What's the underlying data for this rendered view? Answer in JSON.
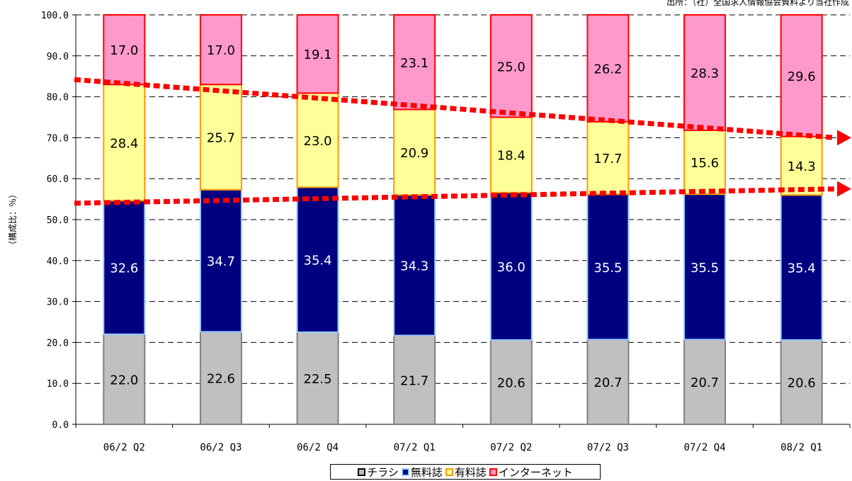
{
  "source_note": "出所：（社）全国求人情報協会資料より当社作成",
  "chart_data": {
    "type": "bar",
    "stacked": true,
    "categories": [
      "06/2 Q2",
      "06/2 Q3",
      "06/2 Q4",
      "07/2 Q1",
      "07/2 Q2",
      "07/2 Q3",
      "07/2 Q4",
      "08/2 Q1"
    ],
    "series": [
      {
        "name": "チラシ",
        "values": [
          22.0,
          22.6,
          22.5,
          21.7,
          20.6,
          20.7,
          20.7,
          20.6
        ],
        "fill": "#c0c0c0",
        "stroke": "#808080",
        "label_color": "#000000"
      },
      {
        "name": "無料誌",
        "values": [
          32.6,
          34.7,
          35.4,
          34.3,
          36.0,
          35.5,
          35.5,
          35.4
        ],
        "fill": "#000080",
        "stroke": "#99ccff",
        "label_color": "#ffffff"
      },
      {
        "name": "有料誌",
        "values": [
          28.4,
          25.7,
          23.0,
          20.9,
          18.4,
          17.7,
          15.6,
          14.3
        ],
        "fill": "#ffff99",
        "stroke": "#ff9900",
        "label_color": "#000000"
      },
      {
        "name": "インターネット",
        "values": [
          17.0,
          17.0,
          19.1,
          23.1,
          25.0,
          26.2,
          28.3,
          29.6
        ],
        "fill": "#ff99cc",
        "stroke": "#ff0000",
        "label_color": "#000000"
      }
    ],
    "ylabel": "（構成比：％）",
    "ylim": [
      0,
      100
    ],
    "yticks": [
      "0.0",
      "10.0",
      "20.0",
      "30.0",
      "40.0",
      "50.0",
      "60.0",
      "70.0",
      "80.0",
      "90.0",
      "100.0"
    ],
    "grid": "dashed horizontal",
    "legend_position": "bottom",
    "trend_lines": [
      {
        "from": 84.2,
        "to": 70.0,
        "color": "#ff0000"
      },
      {
        "from": 54.0,
        "to": 57.5,
        "color": "#ff0000"
      }
    ]
  }
}
